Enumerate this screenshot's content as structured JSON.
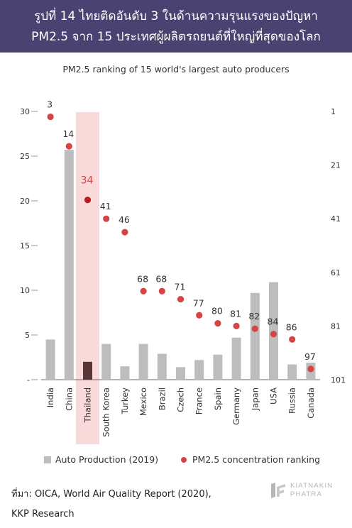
{
  "header": {
    "line1": "รูปที่ 14 ไทยติดอันดับ 3 ในด้านความรุนแรงของปัญหา",
    "line2": "PM2.5 จาก 15 ประเทศผู้ผลิตรถยนต์ที่ใหญ่ที่สุดของโลก"
  },
  "chart_data": {
    "type": "bar",
    "title": "PM2.5 ranking of 15 world's largest auto producers",
    "categories": [
      "India",
      "China",
      "Thailand",
      "South Korea",
      "Turkey",
      "Mexico",
      "Brazil",
      "Czech",
      "France",
      "Spain",
      "Germany",
      "Japan",
      "USA",
      "Russia",
      "Canada"
    ],
    "highlight_category": "Thailand",
    "series": [
      {
        "name": "Auto Production (2019)",
        "type": "bar",
        "axis": "left",
        "values": [
          4.5,
          25.7,
          2.0,
          4.0,
          1.5,
          4.0,
          2.9,
          1.4,
          2.2,
          2.8,
          4.7,
          9.7,
          10.9,
          1.7,
          1.9
        ]
      },
      {
        "name": "PM2.5 concentration ranking",
        "type": "scatter",
        "axis": "right",
        "values": [
          3,
          14,
          34,
          41,
          46,
          68,
          68,
          71,
          77,
          80,
          81,
          82,
          84,
          86,
          97
        ]
      }
    ],
    "y_left": {
      "ylim": [
        0,
        30
      ],
      "ticks": [
        "-",
        "5",
        "10",
        "15",
        "20",
        "25",
        "30"
      ]
    },
    "y_right": {
      "ylim": [
        1,
        101
      ],
      "reversed": true,
      "ticks": [
        "1",
        "21",
        "41",
        "61",
        "81",
        "101"
      ]
    },
    "colors": {
      "bar": "#bdbdbd",
      "bar_highlight": "#5a3638",
      "dot": "#d64545",
      "dot_highlight": "#b81c1c",
      "highlight_band": "#f9d9d9",
      "label_highlight": "#d64545"
    },
    "grid": false,
    "legend": "bottom"
  },
  "footer": {
    "source_line1": "ที่มา: OICA, World Air Quality Report (2020),",
    "source_line2": "KKP Research",
    "logo_line1": "KIATNAKIN",
    "logo_line2": "PHATRA"
  }
}
